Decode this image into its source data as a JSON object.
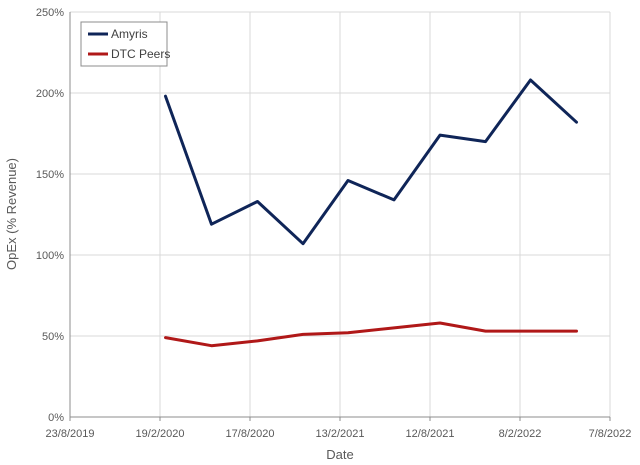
{
  "chart_data": {
    "type": "line",
    "title": "",
    "xlabel": "Date",
    "ylabel": "OpEx (% Revenue)",
    "ylim": [
      0,
      250
    ],
    "xlim": [
      "2019-08-23",
      "2022-08-07"
    ],
    "y_ticks": [
      "0%",
      "50%",
      "100%",
      "150%",
      "200%",
      "250%"
    ],
    "y_tick_values": [
      0,
      50,
      100,
      150,
      200,
      250
    ],
    "x_ticks": [
      "23/8/2019",
      "19/2/2020",
      "17/8/2020",
      "13/2/2021",
      "12/8/2021",
      "8/2/2022",
      "7/8/2022"
    ],
    "x_tick_dates": [
      "2019-08-23",
      "2020-02-19",
      "2020-08-17",
      "2021-02-13",
      "2021-08-12",
      "2022-02-08",
      "2022-08-07"
    ],
    "grid": true,
    "legend_position": "top-left",
    "x": [
      "2020-03-01",
      "2020-06-01",
      "2020-09-01",
      "2020-12-01",
      "2021-03-01",
      "2021-06-01",
      "2021-09-01",
      "2021-12-01",
      "2022-03-01",
      "2022-06-01"
    ],
    "series": [
      {
        "name": "Amyris",
        "color": "#0f2558",
        "values": [
          198,
          119,
          133,
          107,
          146,
          134,
          174,
          170,
          208,
          182
        ]
      },
      {
        "name": "DTC Peers",
        "color": "#b01818",
        "values": [
          49,
          44,
          47,
          51,
          52,
          55,
          58,
          53,
          53,
          53
        ]
      }
    ]
  }
}
